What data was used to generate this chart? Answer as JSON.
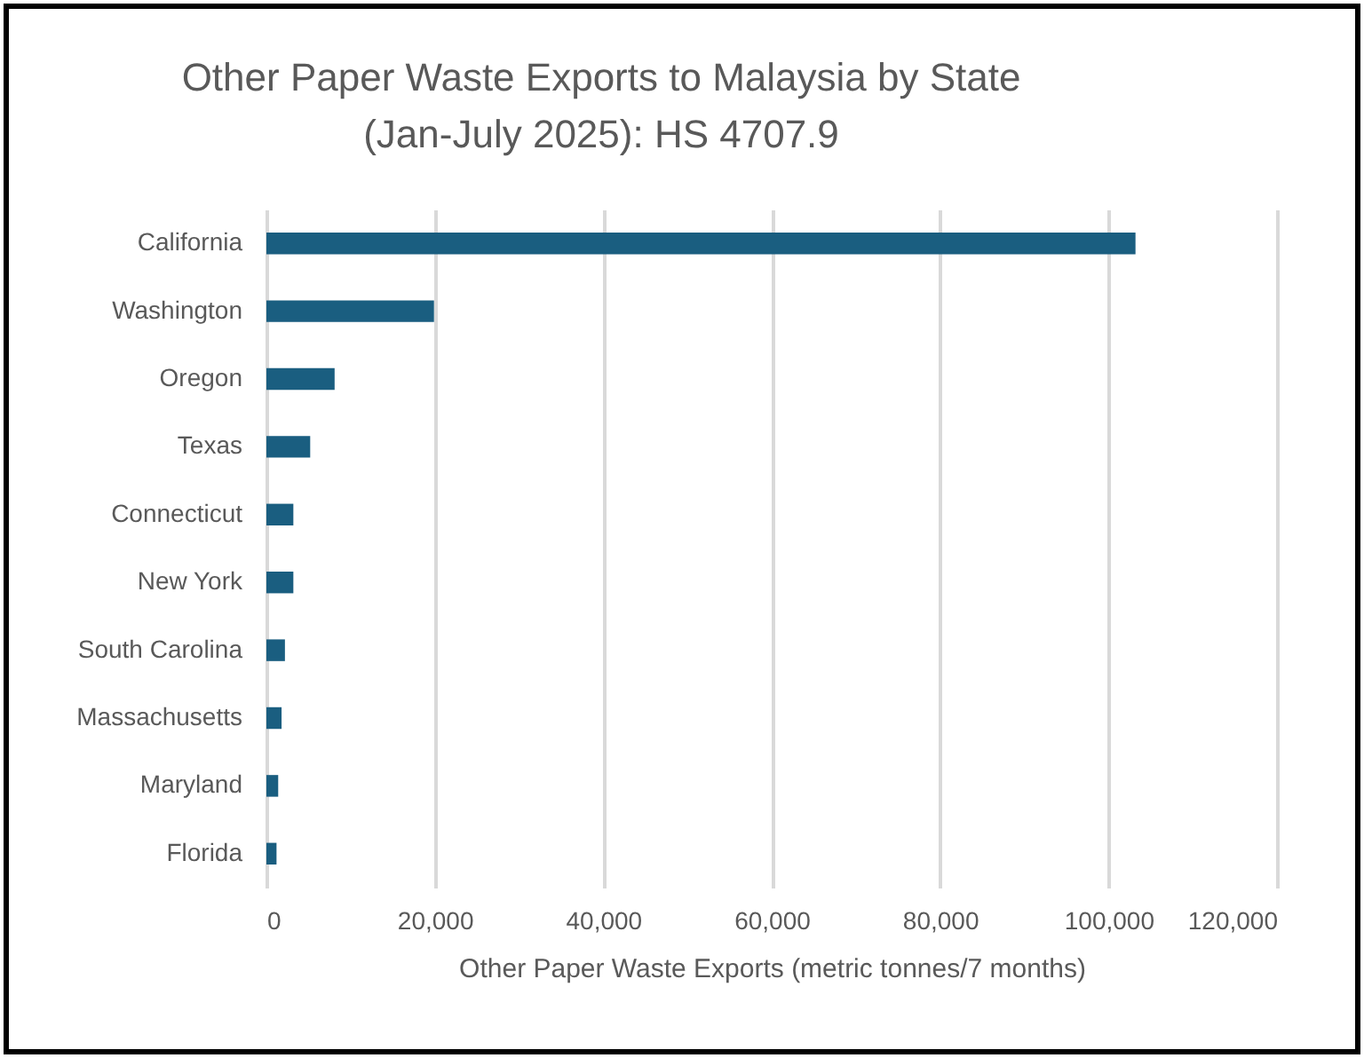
{
  "chart_data": {
    "type": "bar",
    "orientation": "horizontal",
    "title": "Other Paper Waste Exports to Malaysia by State\n(Jan-July 2025): HS 4707.9",
    "xlabel": "Other Paper Waste Exports (metric tonnes/7 months)",
    "categories": [
      "California",
      "Washington",
      "Oregon",
      "Texas",
      "Connecticut",
      "New York",
      "South Carolina",
      "Massachusetts",
      "Maryland",
      "Florida"
    ],
    "values": [
      103200,
      19900,
      8100,
      5200,
      3200,
      3200,
      2200,
      1800,
      1400,
      1200
    ],
    "color": "#1a5e80",
    "xlim": [
      0,
      120000
    ],
    "xticks": [
      {
        "value": 0,
        "label": "0"
      },
      {
        "value": 20000,
        "label": "20,000"
      },
      {
        "value": 40000,
        "label": "40,000"
      },
      {
        "value": 60000,
        "label": "60,000"
      },
      {
        "value": 80000,
        "label": "80,000"
      },
      {
        "value": 100000,
        "label": "100,000"
      },
      {
        "value": 120000,
        "label": "120,000"
      }
    ],
    "grid": "x"
  }
}
